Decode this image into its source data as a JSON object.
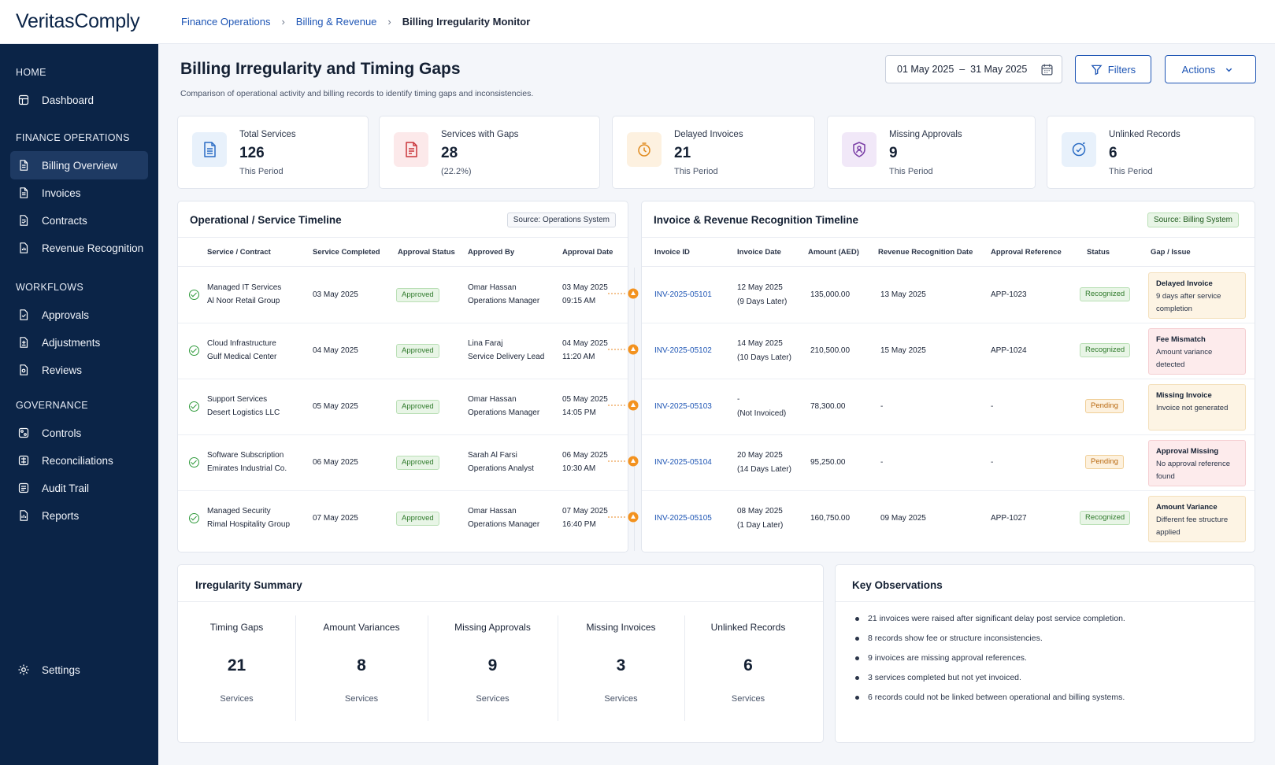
{
  "app": {
    "brand": "VeritasComply"
  },
  "breadcrumb": [
    "Finance Operations",
    "Billing & Revenue",
    "Billing Irregularity Monitor"
  ],
  "sidebar": {
    "sections": [
      {
        "title": "HOME",
        "items": [
          {
            "label": "Dashboard",
            "icon": "dashboard-icon"
          }
        ]
      },
      {
        "title": "FINANCE OPERATIONS",
        "items": [
          {
            "label": "Billing Overview",
            "icon": "document-icon",
            "active": true
          },
          {
            "label": "Invoices",
            "icon": "document-icon"
          },
          {
            "label": "Contracts",
            "icon": "contract-icon"
          },
          {
            "label": "Revenue Recognition",
            "icon": "revenue-icon"
          }
        ]
      },
      {
        "title": "WORKFLOWS",
        "items": [
          {
            "label": "Approvals",
            "icon": "approval-icon"
          },
          {
            "label": "Adjustments",
            "icon": "adjustment-icon"
          },
          {
            "label": "Reviews",
            "icon": "review-icon"
          }
        ]
      },
      {
        "title": "GOVERNANCE",
        "items": [
          {
            "label": "Controls",
            "icon": "controls-icon"
          },
          {
            "label": "Reconciliations",
            "icon": "reconcile-icon"
          },
          {
            "label": "Audit Trail",
            "icon": "audit-icon"
          },
          {
            "label": "Reports",
            "icon": "report-icon"
          }
        ]
      }
    ],
    "settings": "Settings"
  },
  "header": {
    "title": "Billing Irregularity and Timing Gaps",
    "subtitle": "Comparison of operational activity and billing records to identify timing gaps and inconsistencies.",
    "date_range": "01 May 2025  –  31 May 2025",
    "filters_label": "Filters",
    "actions_label": "Actions"
  },
  "kpis": [
    {
      "label": "Total Services",
      "value": "126",
      "sub": "This Period",
      "icon": "document-icon",
      "color": "#2b6cc4",
      "bg": "#e8f1fb"
    },
    {
      "label": "Services with Gaps",
      "value": "28",
      "sub": "(22.2%)",
      "icon": "alert-document-icon",
      "color": "#c9353b",
      "bg": "#fce9ea"
    },
    {
      "label": "Delayed Invoices",
      "value": "21",
      "sub": "This Period",
      "icon": "clock-icon",
      "color": "#e08a1e",
      "bg": "#fdf1e0"
    },
    {
      "label": "Missing Approvals",
      "value": "9",
      "sub": "This Period",
      "icon": "person-lock-icon",
      "color": "#7a3ea6",
      "bg": "#f1e8f8"
    },
    {
      "label": "Unlinked Records",
      "value": "6",
      "sub": "This Period",
      "icon": "link-clock-icon",
      "color": "#2b6cc4",
      "bg": "#e8f1fb"
    }
  ],
  "ops": {
    "title": "Operational / Service Timeline",
    "source": "Source: Operations System",
    "columns": [
      "Service / Contract",
      "Service Completed",
      "Approval Status",
      "Approved By",
      "Approval Date"
    ],
    "rows": [
      {
        "service": "Managed IT Services",
        "client": "Al Noor Retail Group",
        "completed": "03 May 2025",
        "status": "Approved",
        "by": "Omar Hassan",
        "role": "Operations Manager",
        "date": "03 May 2025",
        "time": "09:15 AM"
      },
      {
        "service": "Cloud Infrastructure",
        "client": "Gulf Medical Center",
        "completed": "04 May 2025",
        "status": "Approved",
        "by": "Lina Faraj",
        "role": "Service Delivery Lead",
        "date": "04 May 2025",
        "time": "11:20 AM"
      },
      {
        "service": "Support Services",
        "client": "Desert Logistics LLC",
        "completed": "05 May 2025",
        "status": "Approved",
        "by": "Omar Hassan",
        "role": "Operations Manager",
        "date": "05 May 2025",
        "time": "14:05 PM"
      },
      {
        "service": "Software Subscription",
        "client": "Emirates Industrial Co.",
        "completed": "06 May 2025",
        "status": "Approved",
        "by": "Sarah Al Farsi",
        "role": "Operations Analyst",
        "date": "06 May 2025",
        "time": "10:30 AM"
      },
      {
        "service": "Managed Security",
        "client": "Rimal Hospitality Group",
        "completed": "07 May 2025",
        "status": "Approved",
        "by": "Omar Hassan",
        "role": "Operations Manager",
        "date": "07 May 2025",
        "time": "16:40 PM"
      }
    ]
  },
  "inv": {
    "title": "Invoice & Revenue Recognition Timeline",
    "source": "Source: Billing System",
    "columns": [
      "Invoice ID",
      "Invoice Date",
      "Amount (AED)",
      "Revenue Recognition Date",
      "Approval Reference",
      "Status",
      "Gap / Issue"
    ],
    "rows": [
      {
        "id": "INV-2025-05101",
        "date": "12 May 2025",
        "lag": "(9 Days Later)",
        "amount": "135,000.00",
        "rev": "13 May 2025",
        "ref": "APP-1023",
        "status": "Recognized",
        "tone": "green",
        "gap_title": "Delayed Invoice",
        "gap_desc": "9 days after service completion",
        "gap_tone": "y"
      },
      {
        "id": "INV-2025-05102",
        "date": "14 May 2025",
        "lag": "(10 Days Later)",
        "amount": "210,500.00",
        "rev": "15 May 2025",
        "ref": "APP-1024",
        "status": "Recognized",
        "tone": "green",
        "gap_title": "Fee Mismatch",
        "gap_desc": "Amount variance detected",
        "gap_tone": "r"
      },
      {
        "id": "INV-2025-05103",
        "date": "-",
        "lag": "(Not Invoiced)",
        "amount": "78,300.00",
        "rev": "-",
        "ref": "-",
        "status": "Pending",
        "tone": "orange",
        "gap_title": "Missing Invoice",
        "gap_desc": "Invoice not generated",
        "gap_tone": "y"
      },
      {
        "id": "INV-2025-05104",
        "date": "20 May 2025",
        "lag": "(14 Days Later)",
        "amount": "95,250.00",
        "rev": "-",
        "ref": "-",
        "status": "Pending",
        "tone": "orange",
        "gap_title": "Approval Missing",
        "gap_desc": "No approval reference found",
        "gap_tone": "r"
      },
      {
        "id": "INV-2025-05105",
        "date": "08 May 2025",
        "lag": "(1 Day Later)",
        "amount": "160,750.00",
        "rev": "09 May 2025",
        "ref": "APP-1027",
        "status": "Recognized",
        "tone": "green",
        "gap_title": "Amount Variance",
        "gap_desc": "Different fee structure applied",
        "gap_tone": "y"
      }
    ]
  },
  "summary": {
    "title": "Irregularity Summary",
    "items": [
      {
        "label": "Timing Gaps",
        "value": "21",
        "unit": "Services"
      },
      {
        "label": "Amount Variances",
        "value": "8",
        "unit": "Services"
      },
      {
        "label": "Missing Approvals",
        "value": "9",
        "unit": "Services"
      },
      {
        "label": "Missing Invoices",
        "value": "3",
        "unit": "Services"
      },
      {
        "label": "Unlinked Records",
        "value": "6",
        "unit": "Services"
      }
    ]
  },
  "observations": {
    "title": "Key Observations",
    "items": [
      "21 invoices were raised after significant delay post service completion.",
      "8 records show fee or structure inconsistencies.",
      "9 invoices are missing approval references.",
      "3 services completed but not yet invoiced.",
      "6 records could not be linked between operational and billing systems."
    ]
  }
}
